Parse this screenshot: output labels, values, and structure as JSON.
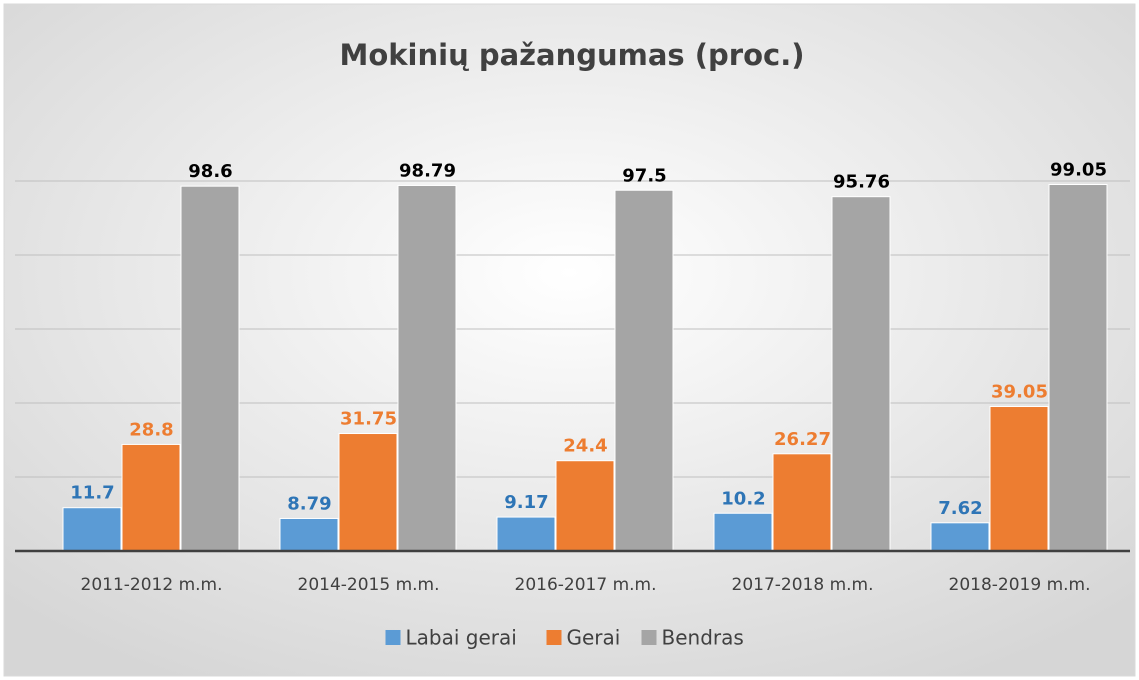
{
  "chart_data": {
    "type": "bar",
    "title": "Mokinių pažangumas (proc.)",
    "categories": [
      "2011-2012 m.m.",
      "2014-2015 m.m.",
      "2016-2017 m.m.",
      "2017-2018 m.m.",
      "2018-2019 m.m."
    ],
    "series": [
      {
        "name": "Labai gerai",
        "color": "#5b9bd5",
        "label_color": "#2e75b6",
        "values": [
          11.7,
          8.79,
          9.17,
          10.2,
          7.62
        ]
      },
      {
        "name": "Gerai",
        "color": "#ed7d31",
        "label_color": "#ed7d31",
        "values": [
          28.8,
          31.75,
          24.4,
          26.27,
          39.05
        ]
      },
      {
        "name": "Bendras",
        "color": "#a5a5a5",
        "label_color": "#000000",
        "values": [
          98.6,
          98.79,
          97.5,
          95.76,
          99.05
        ]
      }
    ],
    "ylim": [
      0,
      100
    ],
    "yticks": [
      0,
      20,
      40,
      60,
      80,
      100
    ],
    "grid": true,
    "legend": "bottom"
  }
}
